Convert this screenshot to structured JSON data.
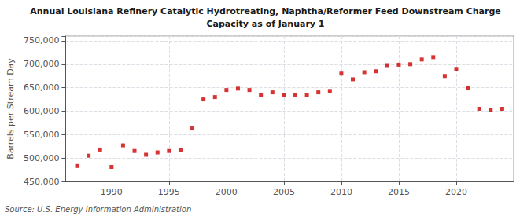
{
  "chart_data": {
    "type": "scatter",
    "title": "Annual Louisiana Refinery Catalytic Hydrotreating, Naphtha/Reformer Feed Downstream Charge",
    "subtitle": "Capacity as of January 1",
    "ylabel": "Barrels per Stream Day",
    "source": "Source: U.S. Energy Information Administration",
    "x": [
      1987,
      1988,
      1989,
      1990,
      1991,
      1992,
      1993,
      1994,
      1995,
      1996,
      1997,
      1998,
      1999,
      2000,
      2001,
      2002,
      2003,
      2004,
      2005,
      2006,
      2007,
      2008,
      2009,
      2010,
      2011,
      2012,
      2013,
      2014,
      2015,
      2016,
      2017,
      2018,
      2019,
      2020,
      2021,
      2022,
      2023,
      2024
    ],
    "values": [
      483000,
      505000,
      518000,
      481000,
      527000,
      515000,
      507000,
      512000,
      515000,
      517000,
      563000,
      625000,
      630000,
      645000,
      648000,
      645000,
      635000,
      640000,
      635000,
      635000,
      635000,
      640000,
      643000,
      680000,
      668000,
      683000,
      685000,
      698000,
      699000,
      700000,
      710000,
      715000,
      675000,
      690000,
      650000,
      605000,
      603000,
      605000
    ],
    "color": "#cc0000",
    "marker": "square",
    "xlim": [
      1986,
      2025
    ],
    "xticks": [
      1990,
      1995,
      2000,
      2005,
      2010,
      2015,
      2020
    ],
    "ylim": [
      450000,
      760000
    ],
    "yticks": [
      {
        "value": 450000,
        "label": "450,000"
      },
      {
        "value": 500000,
        "label": "500,000"
      },
      {
        "value": 550000,
        "label": "550,000"
      },
      {
        "value": 600000,
        "label": "600,000"
      },
      {
        "value": 650000,
        "label": "650,000"
      },
      {
        "value": 700000,
        "label": "700,000"
      },
      {
        "value": 750000,
        "label": "750,000"
      }
    ],
    "grid": true
  }
}
